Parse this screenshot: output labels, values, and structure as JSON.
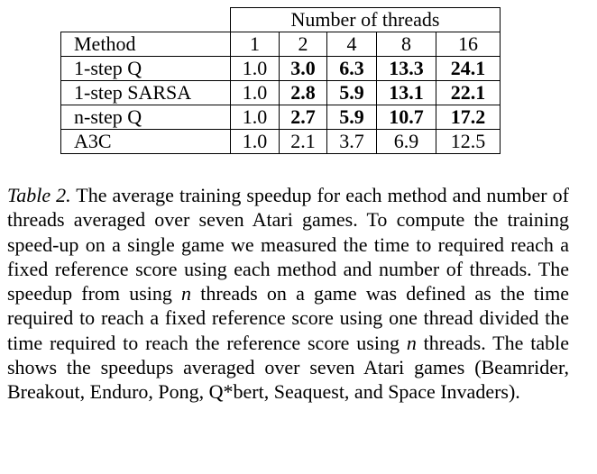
{
  "table": {
    "group_header": "Number of threads",
    "method_header": "Method",
    "thread_counts": [
      "1",
      "2",
      "4",
      "8",
      "16"
    ],
    "rows": [
      {
        "method": "1-step Q",
        "values": [
          "1.0",
          "3.0",
          "6.3",
          "13.3",
          "24.1"
        ],
        "bold": [
          false,
          true,
          true,
          true,
          true
        ]
      },
      {
        "method": "1-step SARSA",
        "values": [
          "1.0",
          "2.8",
          "5.9",
          "13.1",
          "22.1"
        ],
        "bold": [
          false,
          true,
          true,
          true,
          true
        ]
      },
      {
        "method": "n-step Q",
        "values": [
          "1.0",
          "2.7",
          "5.9",
          "10.7",
          "17.2"
        ],
        "bold": [
          false,
          true,
          true,
          true,
          true
        ]
      },
      {
        "method": "A3C",
        "values": [
          "1.0",
          "2.1",
          "3.7",
          "6.9",
          "12.5"
        ],
        "bold": [
          false,
          false,
          false,
          false,
          false
        ]
      }
    ]
  },
  "caption": {
    "label": "Table 2.",
    "segments": [
      " The average training speedup for each method and number of threads averaged over seven Atari games. To compute the training speed-up on a single game we measured the time to required reach a fixed reference score using each method and number of threads. The speedup from using ",
      "n",
      " threads on a game was defined as the time required to reach a fixed reference score using one thread divided the time required to reach the reference score using ",
      "n",
      " threads.  The table shows the speedups averaged over seven Atari games (Beamrider, Breakout, Enduro, Pong, Q*bert, Seaquest, and Space Invaders)."
    ]
  }
}
